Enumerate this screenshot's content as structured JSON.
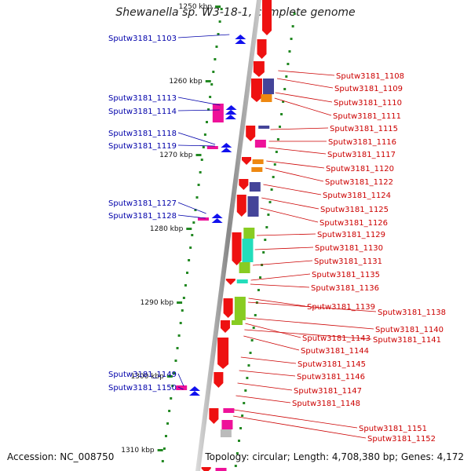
{
  "title": "Shewanella sp. W3-18-1, complete genome",
  "footer": {
    "accession": "Accession: NC_008750",
    "topology": "Topology: circular; Length: 4,708,380 bp; Genes: 4,172"
  },
  "kbp_labels": [
    "1250 kbp",
    "1260 kbp",
    "1270 kbp",
    "1280 kbp",
    "1290 kbp",
    "1300 kbp",
    "1310 kbp"
  ],
  "left_genes": [
    "Sputw3181_1103",
    "Sputw3181_1113",
    "Sputw3181_1114",
    "Sputw3181_1118",
    "Sputw3181_1119",
    "Sputw3181_1127",
    "Sputw3181_1128",
    "Sputw3181_1149",
    "Sputw3181_1150"
  ],
  "right_genes": [
    "Sputw3181_1108",
    "Sputw3181_1109",
    "Sputw3181_1110",
    "Sputw3181_1111",
    "Sputw3181_1115",
    "Sputw3181_1116",
    "Sputw3181_1117",
    "Sputw3181_1120",
    "Sputw3181_1122",
    "Sputw3181_1124",
    "Sputw3181_1125",
    "Sputw3181_1126",
    "Sputw3181_1129",
    "Sputw3181_1130",
    "Sputw3181_1131",
    "Sputw3181_1135",
    "Sputw3181_1136",
    "Sputw3181_1139",
    "Sputw3181_1138",
    "Sputw3181_1140",
    "Sputw3181_1143",
    "Sputw3181_1141",
    "Sputw3181_1144",
    "Sputw3181_1145",
    "Sputw3181_1146",
    "Sputw3181_1147",
    "Sputw3181_1148",
    "Sputw3181_1151",
    "Sputw3181_1152"
  ],
  "colors": {
    "forward_label": "#cc0000",
    "reverse_label": "#0000aa",
    "forward_arrow": "#ee1111",
    "reverse_arrow": "#1111ee",
    "backbone": "#999999",
    "tick": "#228822",
    "magenta": "#ee1199",
    "slate": "#444499",
    "orange": "#ee8811",
    "green": "#88cc22",
    "teal": "#22ddbb",
    "gray": "#bbbbbb"
  }
}
